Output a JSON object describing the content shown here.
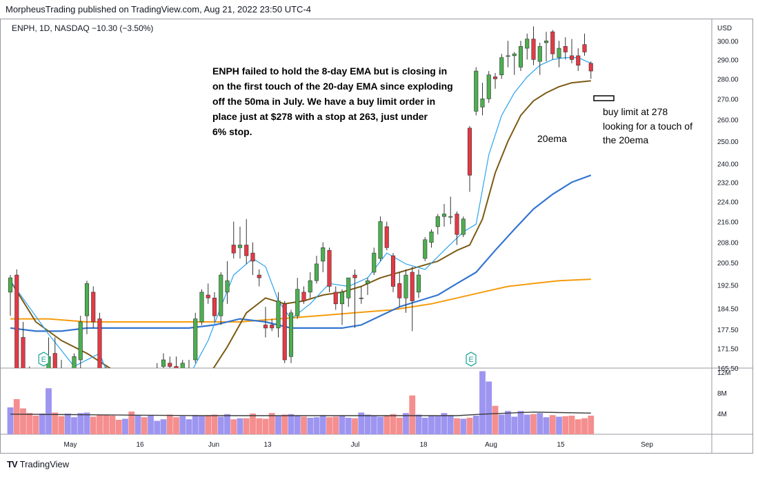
{
  "header": {
    "published_by": "MorpheusTrading published on TradingView.com, Aug 21, 2022 23:50 UTC-4"
  },
  "legend": {
    "symbol_line": "ENPH, 1D, NASDAQ  −10.30 (−3.50%)"
  },
  "footer": {
    "brand": "TradingView",
    "logo": "TV"
  },
  "colors": {
    "up": "#26a69a",
    "up_candle": "#4caf50",
    "down": "#e53945",
    "ema8": "#29a3ef",
    "ema20": "#7b5a12",
    "ma50": "#3375d1",
    "ma200": "#f59b0c",
    "vol_up": "#9d95f0",
    "vol_down": "#f58e8e",
    "vol_ma": "#3b3b3b"
  },
  "annotations": {
    "main_note": [
      "ENPH failed to hold the 8-day EMA but is closing in",
      "on the first touch of the 20-day EMA since exploding",
      "off the 50ma in July.  We have a buy limit order in",
      "place just at $278 with a stop at 263, just under",
      "6% stop."
    ],
    "ema_label": "20ema",
    "buy_note": [
      "buy limit at 278",
      "looking for a touch of",
      "the 20ema"
    ],
    "earnings_marker": "E"
  },
  "chart_data": {
    "type": "candlestick",
    "price_axis": {
      "unit": "USD",
      "scale": "log",
      "ticks": [
        "300.00",
        "290.00",
        "280.00",
        "270.00",
        "260.00",
        "250.00",
        "240.00",
        "232.00",
        "224.00",
        "216.00",
        "208.00",
        "200.50",
        "192.50",
        "184.50",
        "177.50",
        "171.50",
        "165.50"
      ],
      "range": [
        165.5,
        312
      ]
    },
    "volume_axis": {
      "ticks": [
        "12M",
        "8M",
        "4M"
      ],
      "max": 12
    },
    "time_axis": {
      "labels": [
        "May",
        "16",
        "Jun",
        "13",
        "Jul",
        "18",
        "Aug",
        "15",
        "Sep"
      ]
    },
    "candles": [
      {
        "date": "2022-04-25",
        "o": 190,
        "h": 196,
        "l": 182,
        "c": 195
      },
      {
        "date": "2022-04-26",
        "o": 196,
        "h": 198,
        "l": 164,
        "c": 165
      },
      {
        "date": "2022-04-27",
        "o": 175,
        "h": 180,
        "l": 160,
        "c": 162
      },
      {
        "date": "2022-04-28",
        "o": 162,
        "h": 166,
        "l": 150,
        "c": 153
      },
      {
        "date": "2022-04-29",
        "o": 153,
        "h": 158,
        "l": 147,
        "c": 150
      },
      {
        "date": "2022-05-02",
        "o": 150,
        "h": 156,
        "l": 146,
        "c": 155
      },
      {
        "date": "2022-05-03",
        "o": 156,
        "h": 175,
        "l": 155,
        "c": 169
      },
      {
        "date": "2022-05-04",
        "o": 170,
        "h": 175,
        "l": 163,
        "c": 165
      },
      {
        "date": "2022-05-05",
        "o": 164,
        "h": 168,
        "l": 154,
        "c": 157
      },
      {
        "date": "2022-05-06",
        "o": 157,
        "h": 165,
        "l": 152,
        "c": 160
      },
      {
        "date": "2022-05-09",
        "o": 160,
        "h": 170,
        "l": 157,
        "c": 169
      },
      {
        "date": "2022-05-10",
        "o": 168,
        "h": 182,
        "l": 165,
        "c": 180
      },
      {
        "date": "2022-05-11",
        "o": 182,
        "h": 194,
        "l": 176,
        "c": 193
      },
      {
        "date": "2022-05-12",
        "o": 190,
        "h": 192,
        "l": 178,
        "c": 180
      },
      {
        "date": "2022-05-13",
        "o": 181,
        "h": 183,
        "l": 163,
        "c": 165
      },
      {
        "date": "2022-05-16",
        "o": 164,
        "h": 166,
        "l": 152,
        "c": 155
      },
      {
        "date": "2022-05-17",
        "o": 156,
        "h": 158,
        "l": 146,
        "c": 148
      },
      {
        "date": "2022-05-18",
        "o": 148,
        "h": 150,
        "l": 140,
        "c": 142
      },
      {
        "date": "2022-05-19",
        "o": 142,
        "h": 147,
        "l": 140,
        "c": 145
      },
      {
        "date": "2022-05-20",
        "o": 145,
        "h": 148,
        "l": 138,
        "c": 140
      },
      {
        "date": "2022-05-23",
        "o": 140,
        "h": 150,
        "l": 139,
        "c": 148
      },
      {
        "date": "2022-05-24",
        "o": 148,
        "h": 152,
        "l": 143,
        "c": 145
      },
      {
        "date": "2022-05-25",
        "o": 146,
        "h": 158,
        "l": 145,
        "c": 156
      },
      {
        "date": "2022-05-26",
        "o": 157,
        "h": 167,
        "l": 156,
        "c": 165
      },
      {
        "date": "2022-05-27",
        "o": 166,
        "h": 170,
        "l": 162,
        "c": 168
      },
      {
        "date": "2022-05-31",
        "o": 167,
        "h": 169,
        "l": 163,
        "c": 166
      },
      {
        "date": "2022-06-01",
        "o": 166,
        "h": 169,
        "l": 160,
        "c": 165
      },
      {
        "date": "2022-06-02",
        "o": 163,
        "h": 168,
        "l": 162,
        "c": 167
      },
      {
        "date": "2022-06-03",
        "o": 163,
        "h": 168,
        "l": 161,
        "c": 165
      },
      {
        "date": "2022-06-06",
        "o": 168,
        "h": 183,
        "l": 167,
        "c": 181
      },
      {
        "date": "2022-06-07",
        "o": 180,
        "h": 191,
        "l": 179,
        "c": 190
      },
      {
        "date": "2022-06-08",
        "o": 189,
        "h": 193,
        "l": 186,
        "c": 188
      },
      {
        "date": "2022-06-09",
        "o": 188,
        "h": 190,
        "l": 180,
        "c": 182
      },
      {
        "date": "2022-06-10",
        "o": 182,
        "h": 197,
        "l": 179,
        "c": 196
      },
      {
        "date": "2022-06-13",
        "o": 190,
        "h": 201,
        "l": 186,
        "c": 194
      },
      {
        "date": "2022-06-14",
        "o": 207,
        "h": 216,
        "l": 202,
        "c": 204
      },
      {
        "date": "2022-06-15",
        "o": 206,
        "h": 214,
        "l": 202,
        "c": 207
      },
      {
        "date": "2022-06-16",
        "o": 207,
        "h": 217,
        "l": 200,
        "c": 203
      },
      {
        "date": "2022-06-17",
        "o": 204,
        "h": 208,
        "l": 196,
        "c": 201
      },
      {
        "date": "2022-06-21",
        "o": 196,
        "h": 198,
        "l": 192,
        "c": 195
      },
      {
        "date": "2022-06-22",
        "o": 179,
        "h": 185,
        "l": 175,
        "c": 178
      },
      {
        "date": "2022-06-23",
        "o": 179,
        "h": 181,
        "l": 177,
        "c": 178
      },
      {
        "date": "2022-06-24",
        "o": 178,
        "h": 190,
        "l": 175,
        "c": 187
      },
      {
        "date": "2022-06-27",
        "o": 186,
        "h": 187,
        "l": 167,
        "c": 168
      },
      {
        "date": "2022-06-28",
        "o": 169,
        "h": 184,
        "l": 167,
        "c": 183
      },
      {
        "date": "2022-06-29",
        "o": 182,
        "h": 195,
        "l": 181,
        "c": 191
      },
      {
        "date": "2022-06-30",
        "o": 190,
        "h": 192,
        "l": 186,
        "c": 187
      },
      {
        "date": "2022-07-01",
        "o": 190,
        "h": 197,
        "l": 188,
        "c": 194
      },
      {
        "date": "2022-07-05",
        "o": 194,
        "h": 203,
        "l": 193,
        "c": 200
      },
      {
        "date": "2022-07-06",
        "o": 201,
        "h": 208,
        "l": 197,
        "c": 206
      },
      {
        "date": "2022-07-07",
        "o": 205,
        "h": 206,
        "l": 190,
        "c": 192
      },
      {
        "date": "2022-07-08",
        "o": 190,
        "h": 192,
        "l": 184,
        "c": 186
      },
      {
        "date": "2022-07-11",
        "o": 186,
        "h": 191,
        "l": 179,
        "c": 190
      },
      {
        "date": "2022-07-12",
        "o": 188,
        "h": 195,
        "l": 185,
        "c": 195
      },
      {
        "date": "2022-07-13",
        "o": 196,
        "h": 198,
        "l": 178,
        "c": 195
      },
      {
        "date": "2022-07-14",
        "o": 188,
        "h": 192,
        "l": 186,
        "c": 188
      },
      {
        "date": "2022-07-15",
        "o": 193,
        "h": 195,
        "l": 189,
        "c": 194
      },
      {
        "date": "2022-07-18",
        "o": 197,
        "h": 206,
        "l": 196,
        "c": 204
      },
      {
        "date": "2022-07-19",
        "o": 202,
        "h": 218,
        "l": 201,
        "c": 216
      },
      {
        "date": "2022-07-20",
        "o": 214,
        "h": 216,
        "l": 205,
        "c": 206
      },
      {
        "date": "2022-07-21",
        "o": 203,
        "h": 204,
        "l": 190,
        "c": 192
      },
      {
        "date": "2022-07-22",
        "o": 193,
        "h": 197,
        "l": 185,
        "c": 188
      },
      {
        "date": "2022-07-25",
        "o": 188,
        "h": 198,
        "l": 183,
        "c": 196
      },
      {
        "date": "2022-07-26",
        "o": 197,
        "h": 199,
        "l": 177,
        "c": 187
      },
      {
        "date": "2022-07-27",
        "o": 190,
        "h": 198,
        "l": 188,
        "c": 196
      },
      {
        "date": "2022-07-28",
        "o": 202,
        "h": 210,
        "l": 201,
        "c": 209
      },
      {
        "date": "2022-07-29",
        "o": 208,
        "h": 213,
        "l": 206,
        "c": 212
      },
      {
        "date": "2022-08-01",
        "o": 214,
        "h": 219,
        "l": 211,
        "c": 218
      },
      {
        "date": "2022-08-02",
        "o": 218,
        "h": 223,
        "l": 214,
        "c": 219
      },
      {
        "date": "2022-08-03",
        "o": 218,
        "h": 226,
        "l": 215,
        "c": 218
      },
      {
        "date": "2022-08-04",
        "o": 219,
        "h": 220,
        "l": 207,
        "c": 211
      },
      {
        "date": "2022-08-05",
        "o": 211,
        "h": 218,
        "l": 210,
        "c": 217
      },
      {
        "date": "2022-08-08",
        "o": 256,
        "h": 257,
        "l": 228,
        "c": 235
      },
      {
        "date": "2022-08-09",
        "o": 264,
        "h": 286,
        "l": 262,
        "c": 284
      },
      {
        "date": "2022-08-10",
        "o": 266,
        "h": 278,
        "l": 262,
        "c": 270
      },
      {
        "date": "2022-08-11",
        "o": 270,
        "h": 284,
        "l": 268,
        "c": 282
      },
      {
        "date": "2022-08-12",
        "o": 281,
        "h": 283,
        "l": 275,
        "c": 280
      },
      {
        "date": "2022-08-15",
        "o": 282,
        "h": 293,
        "l": 280,
        "c": 291
      },
      {
        "date": "2022-08-16",
        "o": 292,
        "h": 300,
        "l": 286,
        "c": 292
      },
      {
        "date": "2022-08-17",
        "o": 292,
        "h": 294,
        "l": 282,
        "c": 293
      },
      {
        "date": "2022-08-18",
        "o": 286,
        "h": 300,
        "l": 284,
        "c": 297
      },
      {
        "date": "2022-08-19",
        "o": 296,
        "h": 304,
        "l": 290,
        "c": 301
      },
      {
        "date": "2022-08-22",
        "o": 301,
        "h": 308,
        "l": 287,
        "c": 290
      },
      {
        "date": "2022-08-23",
        "o": 289,
        "h": 299,
        "l": 282,
        "c": 297
      },
      {
        "date": "2022-08-24",
        "o": 299,
        "h": 305,
        "l": 289,
        "c": 300
      },
      {
        "date": "2022-08-25",
        "o": 305,
        "h": 306,
        "l": 290,
        "c": 293
      },
      {
        "date": "2022-08-26",
        "o": 291,
        "h": 300,
        "l": 286,
        "c": 296
      },
      {
        "date": "2022-08-29",
        "o": 297,
        "h": 302,
        "l": 290,
        "c": 294
      },
      {
        "date": "2022-08-30",
        "o": 292,
        "h": 301,
        "l": 288,
        "c": 290
      },
      {
        "date": "2022-08-31",
        "o": 292,
        "h": 296,
        "l": 284,
        "c": 287
      },
      {
        "date": "2022-09-01",
        "o": 298,
        "h": 304,
        "l": 292,
        "c": 294
      },
      {
        "date": "2022-09-02",
        "o": 288,
        "h": 289,
        "l": 280,
        "c": 284
      }
    ],
    "volume": [
      5.2,
      6.8,
      5.0,
      4.1,
      3.6,
      4.0,
      8.9,
      4.2,
      3.5,
      4.0,
      3.3,
      4.1,
      4.2,
      3.4,
      3.7,
      3.8,
      3.6,
      2.8,
      3.0,
      4.4,
      3.7,
      3.3,
      3.7,
      2.6,
      2.9,
      3.8,
      3.3,
      3.5,
      2.9,
      3.7,
      3.5,
      3.7,
      3.8,
      3.4,
      3.9,
      2.9,
      3.1,
      3.1,
      4.0,
      3.1,
      3.0,
      4.1,
      3.5,
      3.8,
      3.9,
      3.6,
      3.4,
      3.2,
      3.3,
      3.7,
      3.3,
      3.4,
      3.6,
      3.2,
      3.1,
      4.2,
      3.8,
      3.6,
      3.4,
      3.7,
      3.9,
      3.2,
      4.1,
      7.5,
      3.8,
      3.2,
      3.6,
      3.5,
      4.1,
      3.7,
      3.1,
      3.0,
      3.2,
      3.6,
      12.2,
      10.2,
      5.5,
      3.8,
      4.5,
      3.4,
      4.5,
      3.8,
      3.9,
      4.1,
      3.3,
      3.7,
      3.4,
      3.5,
      3.6,
      2.9,
      3.1,
      3.6
    ],
    "ema8": [
      [
        0,
        194
      ],
      [
        6,
        176
      ],
      [
        10,
        166
      ],
      [
        14,
        170
      ],
      [
        16,
        160
      ],
      [
        20,
        151
      ],
      [
        24,
        156
      ],
      [
        28,
        163
      ],
      [
        31,
        174
      ],
      [
        33,
        185
      ],
      [
        35,
        196
      ],
      [
        38,
        202
      ],
      [
        40,
        199
      ],
      [
        42,
        187
      ],
      [
        44,
        181
      ],
      [
        47,
        186
      ],
      [
        50,
        193
      ],
      [
        53,
        192
      ],
      [
        56,
        195
      ],
      [
        59,
        204
      ],
      [
        62,
        200
      ],
      [
        65,
        198
      ],
      [
        68,
        205
      ],
      [
        71,
        212
      ],
      [
        73,
        215
      ],
      [
        75,
        244
      ],
      [
        77,
        262
      ],
      [
        79,
        273
      ],
      [
        81,
        281
      ],
      [
        83,
        287
      ],
      [
        85,
        290
      ],
      [
        87,
        291
      ],
      [
        89,
        291
      ],
      [
        91,
        288
      ]
    ],
    "ema20": [
      [
        0,
        194
      ],
      [
        4,
        180
      ],
      [
        8,
        174
      ],
      [
        12,
        170
      ],
      [
        16,
        165
      ],
      [
        20,
        160
      ],
      [
        24,
        157
      ],
      [
        28,
        158
      ],
      [
        31,
        163
      ],
      [
        34,
        172
      ],
      [
        37,
        183
      ],
      [
        40,
        188
      ],
      [
        43,
        186
      ],
      [
        46,
        187
      ],
      [
        49,
        189
      ],
      [
        52,
        190
      ],
      [
        55,
        192
      ],
      [
        58,
        195
      ],
      [
        61,
        197
      ],
      [
        64,
        199
      ],
      [
        67,
        201
      ],
      [
        70,
        205
      ],
      [
        72,
        207
      ],
      [
        74,
        217
      ],
      [
        76,
        236
      ],
      [
        78,
        250
      ],
      [
        80,
        262
      ],
      [
        82,
        269
      ],
      [
        84,
        273
      ],
      [
        86,
        276
      ],
      [
        88,
        278
      ],
      [
        91,
        279
      ]
    ],
    "ma50": [
      [
        0,
        178
      ],
      [
        4,
        177
      ],
      [
        8,
        177
      ],
      [
        12,
        178
      ],
      [
        16,
        178
      ],
      [
        20,
        178
      ],
      [
        24,
        178
      ],
      [
        28,
        178
      ],
      [
        32,
        179
      ],
      [
        36,
        181
      ],
      [
        40,
        180
      ],
      [
        44,
        178
      ],
      [
        48,
        178
      ],
      [
        52,
        178
      ],
      [
        55,
        179
      ],
      [
        58,
        182
      ],
      [
        61,
        185
      ],
      [
        64,
        187
      ],
      [
        67,
        189
      ],
      [
        70,
        193
      ],
      [
        73,
        197
      ],
      [
        76,
        205
      ],
      [
        79,
        213
      ],
      [
        82,
        221
      ],
      [
        85,
        227
      ],
      [
        88,
        232
      ],
      [
        91,
        235
      ]
    ],
    "ma200": [
      [
        0,
        181
      ],
      [
        6,
        181
      ],
      [
        12,
        180
      ],
      [
        18,
        180
      ],
      [
        24,
        180
      ],
      [
        30,
        180
      ],
      [
        36,
        180
      ],
      [
        42,
        181
      ],
      [
        48,
        182
      ],
      [
        54,
        183
      ],
      [
        60,
        184
      ],
      [
        66,
        186
      ],
      [
        70,
        188
      ],
      [
        74,
        190
      ],
      [
        78,
        192
      ],
      [
        82,
        193
      ],
      [
        86,
        194
      ],
      [
        91,
        194.5
      ]
    ],
    "vol_ma": [
      [
        0,
        3.9
      ],
      [
        10,
        3.8
      ],
      [
        20,
        3.7
      ],
      [
        30,
        3.6
      ],
      [
        40,
        3.6
      ],
      [
        50,
        3.6
      ],
      [
        60,
        3.6
      ],
      [
        70,
        3.6
      ],
      [
        74,
        3.9
      ],
      [
        78,
        4.1
      ],
      [
        82,
        4.3
      ],
      [
        86,
        4.2
      ],
      [
        91,
        4.1
      ]
    ],
    "earnings_indices": [
      5,
      72
    ],
    "buy_limit_price": 278
  }
}
